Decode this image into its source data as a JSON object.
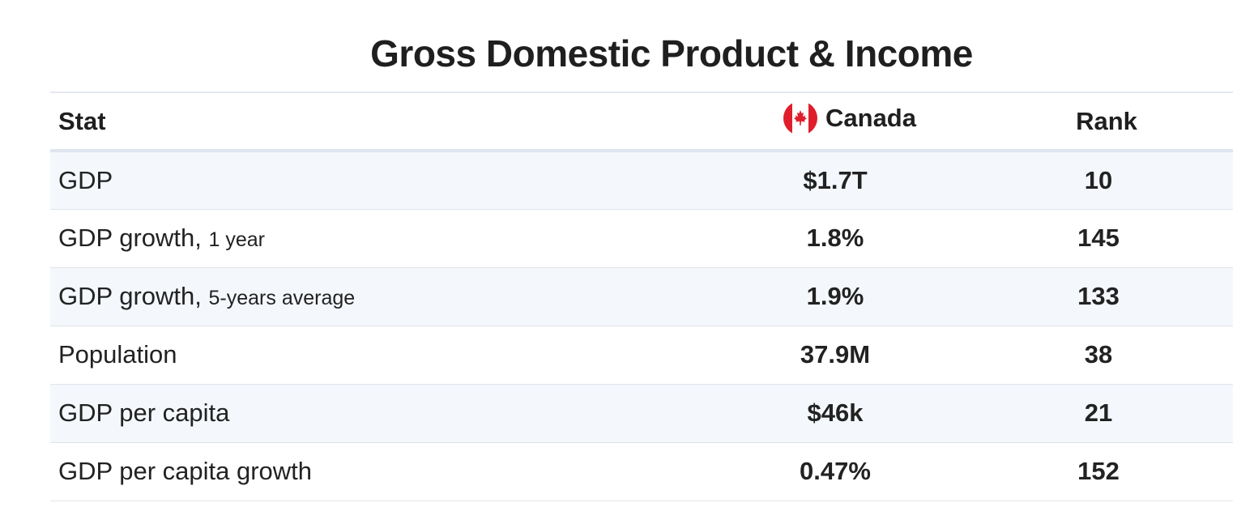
{
  "title": "Gross Domestic Product & Income",
  "table": {
    "headers": {
      "stat": "Stat",
      "country": "Canada",
      "country_flag_icon": "canada-flag-icon",
      "rank": "Rank"
    },
    "rows": [
      {
        "stat": "GDP",
        "note": "",
        "value": "$1.7T",
        "rank": "10"
      },
      {
        "stat": "GDP growth,",
        "note": "1 year",
        "value": "1.8%",
        "rank": "145"
      },
      {
        "stat": "GDP growth,",
        "note": "5-years average",
        "value": "1.9%",
        "rank": "133"
      },
      {
        "stat": "Population",
        "note": "",
        "value": "37.9M",
        "rank": "38"
      },
      {
        "stat": "GDP per capita",
        "note": "",
        "value": "$46k",
        "rank": "21"
      },
      {
        "stat": "GDP per capita growth",
        "note": "",
        "value": "0.47%",
        "rank": "152"
      }
    ]
  },
  "colors": {
    "flag_red": "#e01e2b",
    "row_stripe": "#f4f8fc",
    "divider": "#dfe4ea"
  }
}
